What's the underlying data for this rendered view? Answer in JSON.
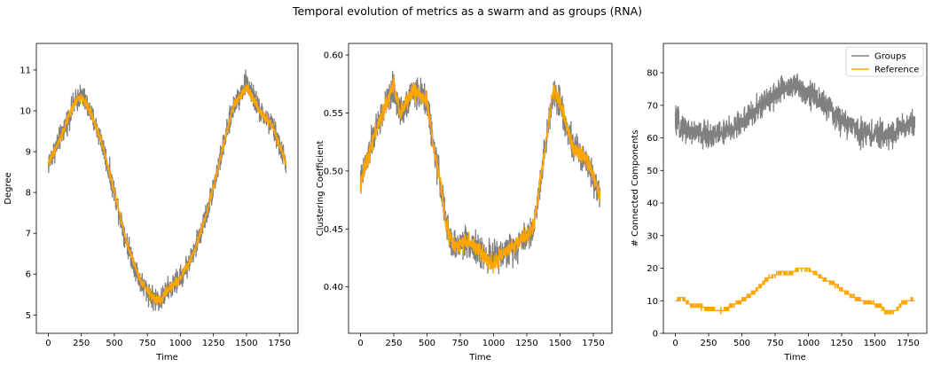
{
  "figure": {
    "suptitle": "Temporal evolution of metrics as a swarm and as groups (RNA)"
  },
  "chart_data": [
    {
      "type": "line",
      "xlabel": "Time",
      "ylabel": "Degree",
      "xlim": [
        -90,
        1890
      ],
      "ylim": [
        4.55,
        11.65
      ],
      "xticks": [
        0,
        250,
        500,
        750,
        1000,
        1250,
        1500,
        1750
      ],
      "yticks": [
        5,
        6,
        7,
        8,
        9,
        10,
        11
      ],
      "ytick_decimals": 0,
      "series": [
        {
          "color": "#808080",
          "noise": 0.28,
          "x": [
            0,
            100,
            200,
            250,
            300,
            400,
            500,
            600,
            700,
            800,
            850,
            900,
            1000,
            1100,
            1200,
            1300,
            1400,
            1500,
            1600,
            1700,
            1800
          ],
          "y": [
            8.7,
            9.4,
            10.2,
            10.4,
            10.1,
            9.3,
            8.0,
            6.7,
            5.8,
            5.4,
            5.35,
            5.6,
            5.9,
            6.5,
            7.5,
            8.8,
            10.1,
            10.7,
            10.0,
            9.6,
            8.7
          ]
        },
        {
          "color": "#ffa500",
          "noise": 0.11,
          "x": [
            0,
            100,
            200,
            250,
            300,
            400,
            500,
            600,
            700,
            800,
            850,
            900,
            1000,
            1100,
            1200,
            1300,
            1400,
            1500,
            1600,
            1700,
            1800
          ],
          "y": [
            8.7,
            9.4,
            10.2,
            10.35,
            10.1,
            9.3,
            8.0,
            6.7,
            5.8,
            5.4,
            5.35,
            5.6,
            5.9,
            6.5,
            7.5,
            8.8,
            10.1,
            10.6,
            10.0,
            9.6,
            8.7
          ]
        }
      ]
    },
    {
      "type": "line",
      "xlabel": "Time",
      "ylabel": "Clustering Coefficient",
      "xlim": [
        -90,
        1890
      ],
      "ylim": [
        0.36,
        0.61
      ],
      "xticks": [
        0,
        250,
        500,
        750,
        1000,
        1250,
        1500,
        1750
      ],
      "yticks": [
        0.4,
        0.45,
        0.5,
        0.55,
        0.6
      ],
      "ytick_decimals": 2,
      "series": [
        {
          "color": "#808080",
          "noise": 0.013,
          "x": [
            0,
            100,
            200,
            250,
            300,
            400,
            500,
            550,
            600,
            650,
            700,
            800,
            900,
            1000,
            1100,
            1200,
            1300,
            1400,
            1450,
            1500,
            1600,
            1700,
            1800
          ],
          "y": [
            0.49,
            0.53,
            0.56,
            0.57,
            0.55,
            0.57,
            0.56,
            0.52,
            0.49,
            0.45,
            0.435,
            0.44,
            0.43,
            0.425,
            0.43,
            0.44,
            0.45,
            0.53,
            0.57,
            0.56,
            0.52,
            0.51,
            0.48
          ]
        },
        {
          "color": "#ffa500",
          "noise": 0.007,
          "x": [
            0,
            100,
            200,
            250,
            300,
            400,
            500,
            550,
            600,
            650,
            700,
            800,
            900,
            1000,
            1100,
            1200,
            1300,
            1400,
            1450,
            1500,
            1600,
            1700,
            1800
          ],
          "y": [
            0.49,
            0.53,
            0.56,
            0.575,
            0.55,
            0.57,
            0.56,
            0.52,
            0.49,
            0.45,
            0.435,
            0.44,
            0.43,
            0.42,
            0.43,
            0.44,
            0.45,
            0.53,
            0.57,
            0.56,
            0.52,
            0.51,
            0.48
          ]
        }
      ]
    },
    {
      "type": "line",
      "xlabel": "Time",
      "ylabel": "# Connected Components",
      "xlim": [
        -90,
        1890
      ],
      "ylim": [
        0,
        89
      ],
      "xticks": [
        0,
        250,
        500,
        750,
        1000,
        1250,
        1500,
        1750
      ],
      "yticks": [
        0,
        10,
        20,
        30,
        40,
        50,
        60,
        70,
        80
      ],
      "ytick_decimals": 0,
      "legend": {
        "position": "upper right",
        "entries": [
          {
            "label": "Groups",
            "color": "#808080"
          },
          {
            "label": "Reference",
            "color": "#ffa500"
          }
        ]
      },
      "series": [
        {
          "name": "Groups",
          "color": "#808080",
          "noise": 4.0,
          "x": [
            0,
            100,
            200,
            300,
            400,
            500,
            600,
            700,
            800,
            900,
            1000,
            1100,
            1200,
            1300,
            1400,
            1500,
            1600,
            1700,
            1800
          ],
          "y": [
            65,
            62,
            61,
            61,
            62,
            65,
            68,
            72,
            75,
            76,
            74,
            71,
            67,
            64,
            62,
            61,
            61,
            63,
            65
          ]
        },
        {
          "name": "Reference",
          "color": "#ffa500",
          "noise": 0.6,
          "x": [
            0,
            50,
            100,
            200,
            300,
            350,
            400,
            500,
            600,
            650,
            700,
            800,
            850,
            900,
            950,
            1000,
            1100,
            1200,
            1300,
            1400,
            1500,
            1550,
            1600,
            1650,
            1700,
            1750,
            1800
          ],
          "y": [
            10,
            11,
            9,
            8,
            7,
            7,
            8,
            10,
            13,
            15,
            17,
            19,
            18,
            19,
            20,
            20,
            17,
            15,
            12,
            10,
            9,
            8,
            6,
            7,
            9,
            10,
            10
          ]
        }
      ]
    }
  ]
}
